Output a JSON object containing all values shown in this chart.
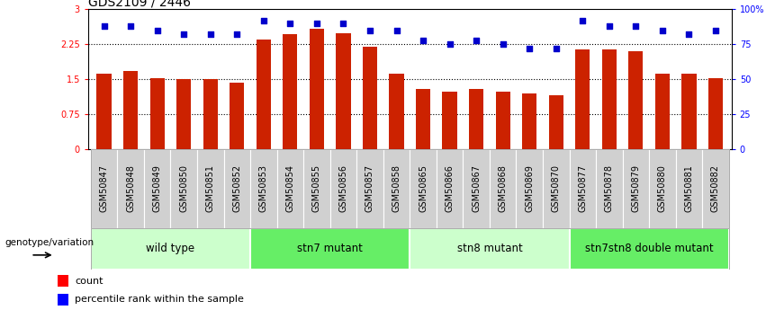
{
  "title": "GDS2109 / 2446",
  "samples": [
    "GSM50847",
    "GSM50848",
    "GSM50849",
    "GSM50850",
    "GSM50851",
    "GSM50852",
    "GSM50853",
    "GSM50854",
    "GSM50855",
    "GSM50856",
    "GSM50857",
    "GSM50858",
    "GSM50865",
    "GSM50866",
    "GSM50867",
    "GSM50868",
    "GSM50869",
    "GSM50870",
    "GSM50877",
    "GSM50878",
    "GSM50879",
    "GSM50880",
    "GSM50881",
    "GSM50882"
  ],
  "counts": [
    1.62,
    1.67,
    1.52,
    1.5,
    1.5,
    1.43,
    2.35,
    2.47,
    2.58,
    2.48,
    2.2,
    1.62,
    1.28,
    1.22,
    1.28,
    1.22,
    1.2,
    1.15,
    2.13,
    2.13,
    2.1,
    1.62,
    1.62,
    1.52
  ],
  "percentile": [
    88,
    88,
    85,
    82,
    82,
    82,
    92,
    90,
    90,
    90,
    85,
    85,
    78,
    75,
    78,
    75,
    72,
    72,
    92,
    88,
    88,
    85,
    82,
    85
  ],
  "groups": [
    {
      "label": "wild type",
      "start": 0,
      "end": 6,
      "color": "#ccffcc"
    },
    {
      "label": "stn7 mutant",
      "start": 6,
      "end": 12,
      "color": "#66ee66"
    },
    {
      "label": "stn8 mutant",
      "start": 12,
      "end": 18,
      "color": "#ccffcc"
    },
    {
      "label": "stn7stn8 double mutant",
      "start": 18,
      "end": 24,
      "color": "#66ee66"
    }
  ],
  "bar_color": "#cc2200",
  "dot_color": "#0000cc",
  "yticks_left": [
    0,
    0.75,
    1.5,
    2.25,
    3.0
  ],
  "ytick_labels_left": [
    "0",
    "0.75",
    "1.5",
    "2.25",
    "3"
  ],
  "yticks_right": [
    0,
    25,
    50,
    75,
    100
  ],
  "ytick_labels_right": [
    "0",
    "25",
    "50",
    "75",
    "100%"
  ],
  "ylim_left": [
    0,
    3.0
  ],
  "ylim_right": [
    0,
    100
  ],
  "genotype_label": "genotype/variation",
  "legend_count_label": "count",
  "legend_pct_label": "percentile rank within the sample",
  "hline_values": [
    0.75,
    1.5,
    2.25
  ],
  "title_fontsize": 10,
  "tick_fontsize": 7.0,
  "group_fontsize": 8.5,
  "label_fontsize": 7.5
}
